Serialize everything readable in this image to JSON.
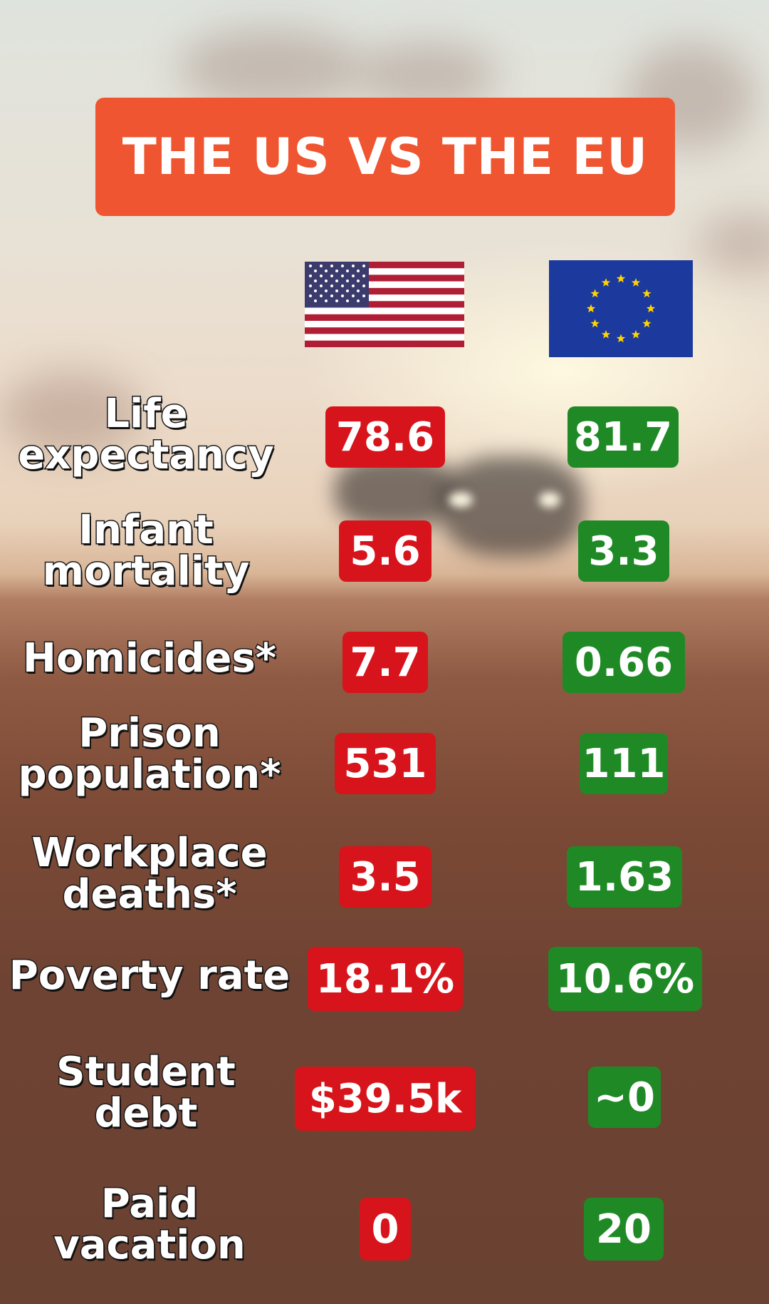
{
  "title": "THE US VS THE EU",
  "flags": {
    "left": "us-flag-icon",
    "right": "eu-flag-icon"
  },
  "colors": {
    "banner": "#ee5530",
    "us_badge": "#d7141b",
    "eu_badge": "#1f8a25"
  },
  "rows": [
    {
      "label": "Life\nexpectancy",
      "us": "78.6",
      "eu": "81.7"
    },
    {
      "label": "Infant\nmortality",
      "us": "5.6",
      "eu": "3.3"
    },
    {
      "label": "Homicides*",
      "us": "7.7",
      "eu": "0.66"
    },
    {
      "label": "Prison\npopulation*",
      "us": "531",
      "eu": "111"
    },
    {
      "label": "Workplace\ndeaths*",
      "us": "3.5",
      "eu": "1.63"
    },
    {
      "label": "Poverty rate",
      "us": "18.1%",
      "eu": "10.6%"
    },
    {
      "label": "Student\ndebt",
      "us": "$39.5k",
      "eu": "~0"
    },
    {
      "label": "Paid\nvacation",
      "us": "0",
      "eu": "20"
    }
  ]
}
